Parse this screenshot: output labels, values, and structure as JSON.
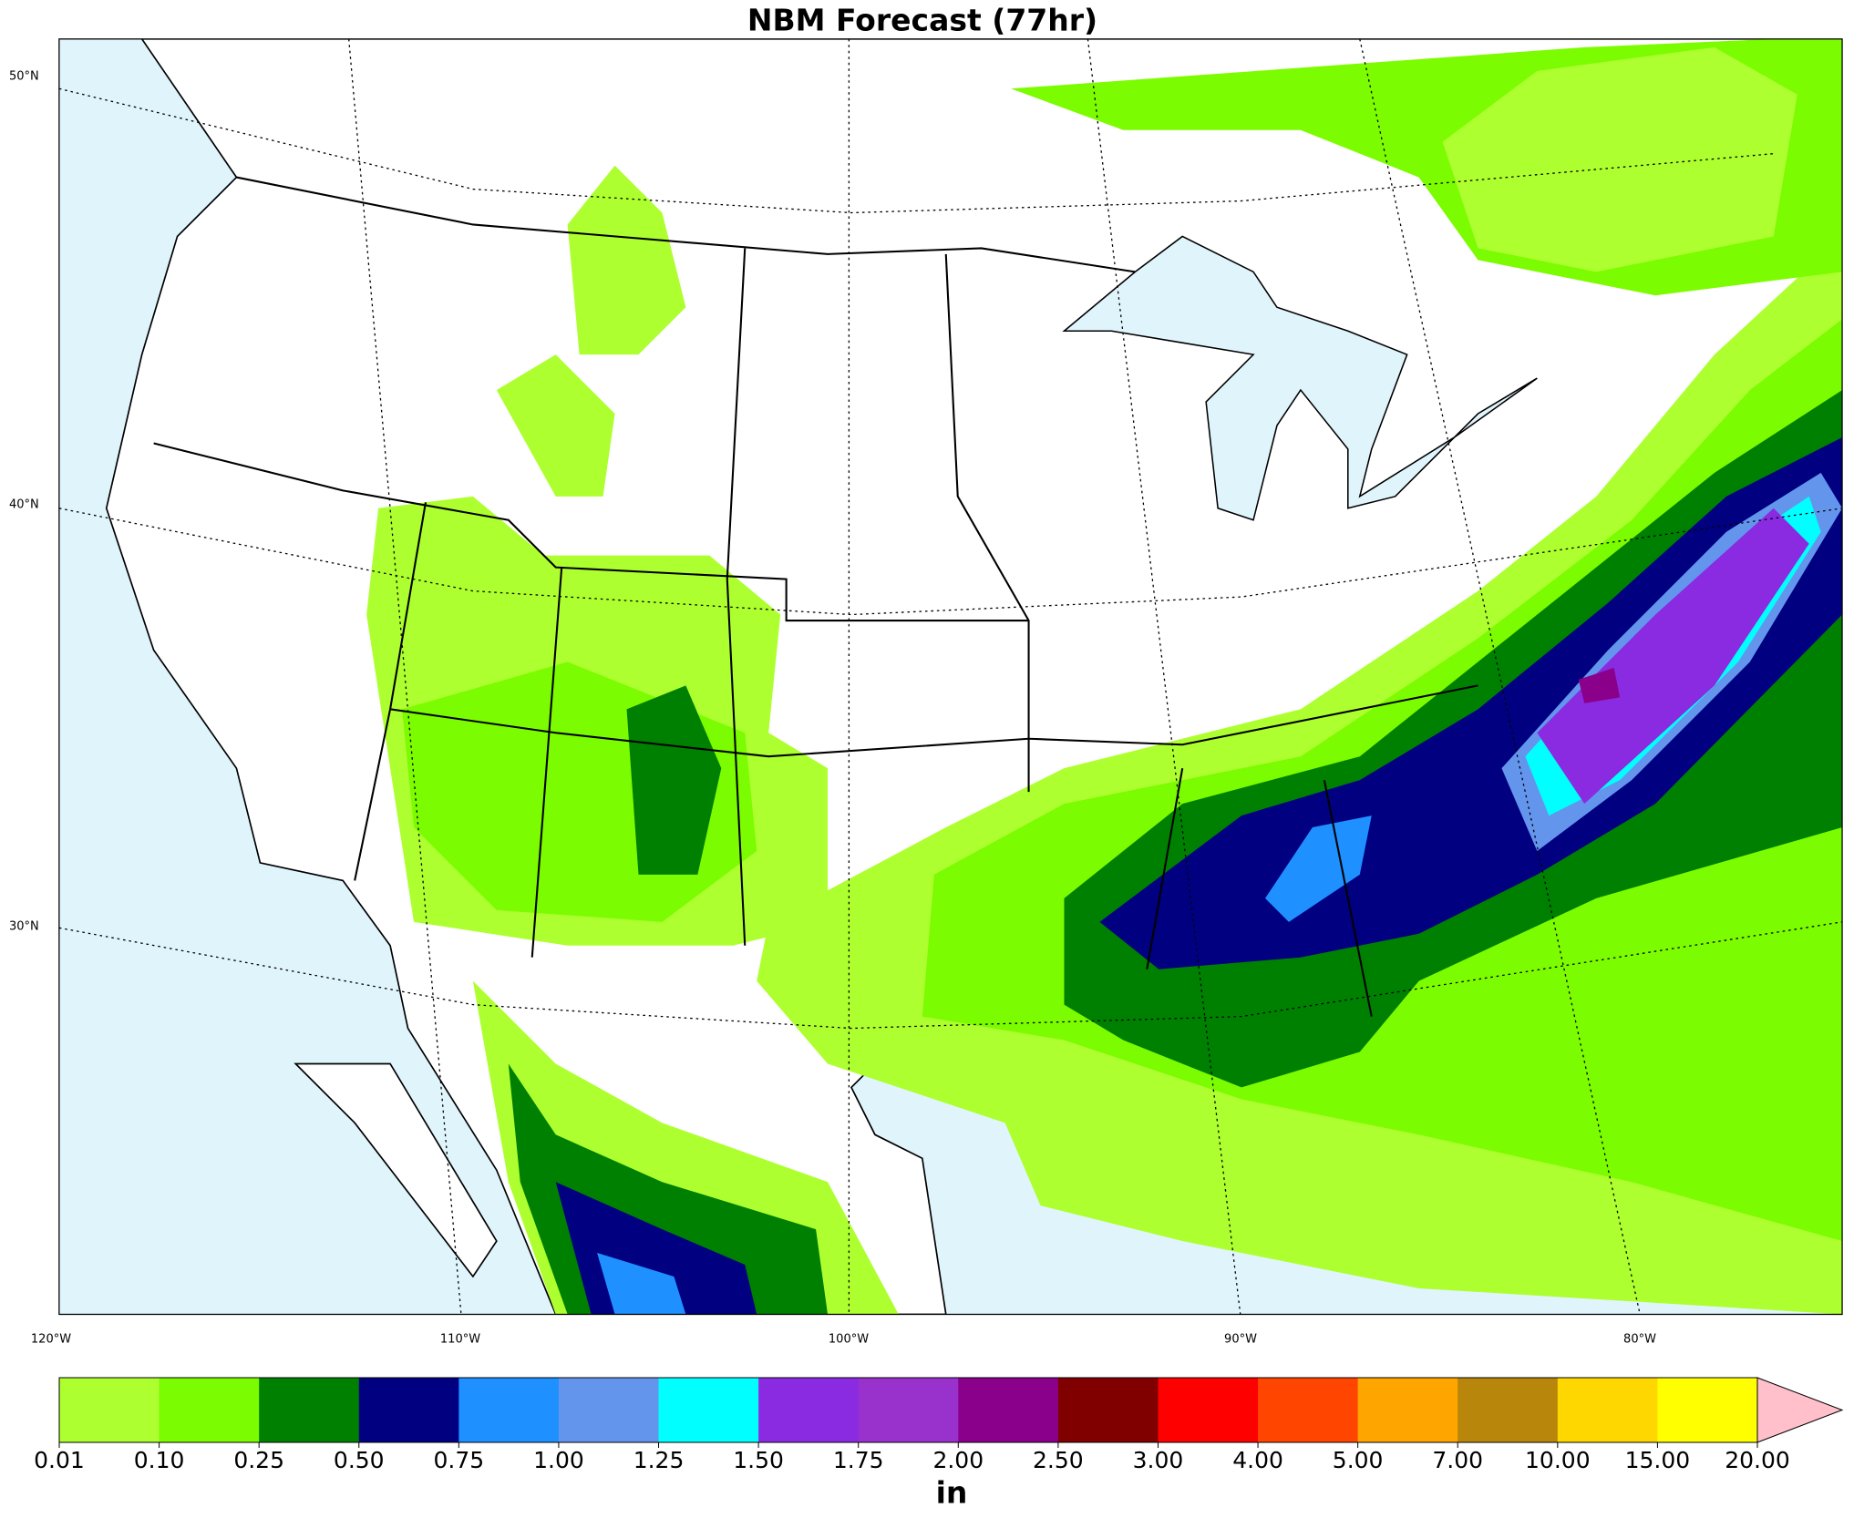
{
  "title": "NBM Forecast (77hr)",
  "lat_labels": [
    "50°N",
    "40°N",
    "30°N"
  ],
  "lon_labels": [
    "120°W",
    "110°W",
    "100°W",
    "90°W",
    "80°W"
  ],
  "colorbar": {
    "label": "in",
    "levels": [
      "0.01",
      "0.10",
      "0.25",
      "0.50",
      "0.75",
      "1.00",
      "1.25",
      "1.50",
      "1.75",
      "2.00",
      "2.50",
      "3.00",
      "4.00",
      "5.00",
      "7.00",
      "10.00",
      "15.00",
      "20.00"
    ],
    "colors": [
      "#adff2f",
      "#7cfc00",
      "#008000",
      "#000080",
      "#1e90ff",
      "#6495ed",
      "#00ffff",
      "#8a2be2",
      "#9932cc",
      "#8b008b",
      "#800000",
      "#ff0000",
      "#ff4500",
      "#ffa500",
      "#b8860b",
      "#ffd700",
      "#ffff00"
    ],
    "extend_color": "#ffc0cb"
  }
}
